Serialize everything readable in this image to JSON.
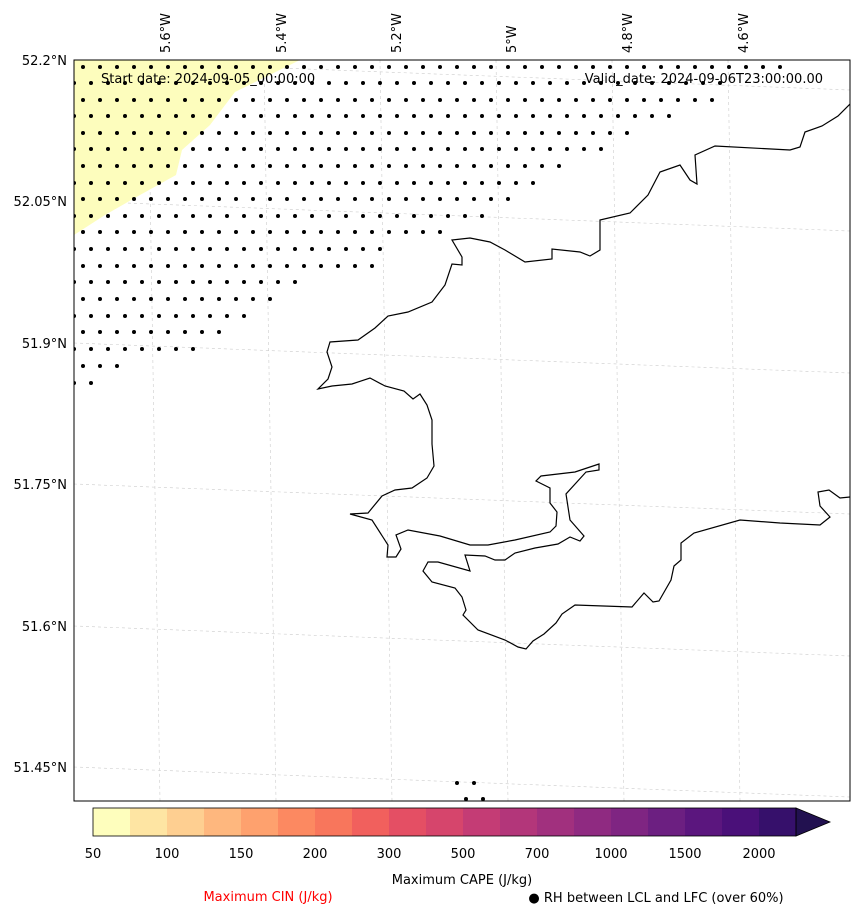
{
  "annotations": {
    "start_date": "Start date: 2024-09-05_00:00:00",
    "valid_date": "Valid_date: 2024-09-06T23:00:00.00"
  },
  "axes": {
    "lon_labels": [
      "5.6°W",
      "5.4°W",
      "5.2°W",
      "5°W",
      "4.8°W",
      "4.6°W"
    ],
    "lat_labels": [
      "52.2°N",
      "52.05°N",
      "51.9°N",
      "51.75°N",
      "51.6°N",
      "51.45°N"
    ]
  },
  "colorbar": {
    "ticks": [
      "50",
      "100",
      "150",
      "200",
      "300",
      "500",
      "700",
      "1000",
      "1500",
      "2000"
    ],
    "colors": [
      "#fefebd",
      "#fee5a3",
      "#fecf91",
      "#feb77e",
      "#fea16e",
      "#fc8961",
      "#f8765c",
      "#f1605d",
      "#e44f64",
      "#d6456c",
      "#c43c75",
      "#b3367a",
      "#a1307e",
      "#8f2a81",
      "#7f2582",
      "#6c1f81",
      "#5b167e",
      "#4a1079",
      "#36106b",
      "#221150"
    ],
    "title": "Maximum CAPE (J/kg)"
  },
  "legend": {
    "cin_label": "Maximum CIN (J/kg)",
    "rh_label": "● RH between LCL and LFC (over 60%)"
  },
  "colors": {
    "cape_fill": "#fdfdbd",
    "cin_color": "#ff0000",
    "coast": "#000000"
  }
}
